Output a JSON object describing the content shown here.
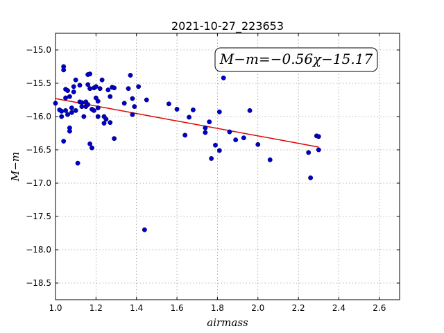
{
  "chart_data": {
    "type": "scatter",
    "title": "2021-10-27_223653",
    "xlabel": "airmass",
    "ylabel": "M−m",
    "annotation": "M−m=−0.56χ−15.17",
    "xlim": [
      1.0,
      2.7
    ],
    "ylim": [
      -18.75,
      -14.75
    ],
    "y_inverted": true,
    "grid": true,
    "xticks": [
      "1.0",
      "1.2",
      "1.4",
      "1.6",
      "1.8",
      "2.0",
      "2.2",
      "2.4",
      "2.6"
    ],
    "yticks": [
      "−15.0",
      "−15.5",
      "−16.0",
      "−16.5",
      "−17.0",
      "−17.5",
      "−18.0",
      "−18.5"
    ],
    "fit": {
      "slope": -0.56,
      "intercept": -15.17,
      "x_range": [
        1.0,
        2.3
      ],
      "color": "#e00000"
    },
    "series": [
      {
        "marker_color": "#0000cc",
        "x": [
          1.0,
          1.02,
          1.03,
          1.03,
          1.04,
          1.04,
          1.04,
          1.05,
          1.05,
          1.05,
          1.06,
          1.06,
          1.07,
          1.07,
          1.07,
          1.08,
          1.08,
          1.09,
          1.09,
          1.1,
          1.1,
          1.11,
          1.12,
          1.12,
          1.13,
          1.13,
          1.14,
          1.15,
          1.15,
          1.16,
          1.16,
          1.16,
          1.17,
          1.17,
          1.17,
          1.18,
          1.18,
          1.19,
          1.19,
          1.2,
          1.2,
          1.21,
          1.21,
          1.21,
          1.22,
          1.23,
          1.24,
          1.24,
          1.25,
          1.26,
          1.27,
          1.27,
          1.28,
          1.29,
          1.29,
          1.34,
          1.36,
          1.37,
          1.38,
          1.38,
          1.39,
          1.41,
          1.44,
          1.45,
          1.56,
          1.6,
          1.64,
          1.66,
          1.68,
          1.74,
          1.74,
          1.76,
          1.77,
          1.79,
          1.81,
          1.81,
          1.83,
          1.86,
          1.89,
          1.93,
          1.96,
          2.0,
          2.06,
          2.25,
          2.26,
          2.29,
          2.3,
          2.3
        ],
        "y": [
          -15.8,
          -15.9,
          -16.0,
          -15.92,
          -16.37,
          -15.25,
          -15.3,
          -15.59,
          -15.72,
          -15.91,
          -15.61,
          -15.97,
          -16.17,
          -16.22,
          -15.7,
          -15.87,
          -15.94,
          -15.55,
          -15.63,
          -15.45,
          -15.91,
          -16.7,
          -15.53,
          -15.78,
          -15.85,
          -15.79,
          -16.0,
          -15.85,
          -15.78,
          -15.37,
          -15.52,
          -15.82,
          -15.58,
          -16.41,
          -15.36,
          -15.89,
          -16.47,
          -15.57,
          -15.91,
          -15.55,
          -15.72,
          -15.77,
          -15.87,
          -16.0,
          -15.58,
          -15.45,
          -16.0,
          -16.1,
          -16.04,
          -15.6,
          -15.7,
          -16.09,
          -15.56,
          -15.57,
          -16.33,
          -15.8,
          -15.58,
          -15.38,
          -15.73,
          -15.97,
          -15.85,
          -15.55,
          -17.7,
          -15.75,
          -15.81,
          -15.89,
          -16.28,
          -16.01,
          -15.9,
          -16.17,
          -16.24,
          -16.08,
          -16.63,
          -16.43,
          -16.51,
          -15.93,
          -15.42,
          -16.23,
          -16.35,
          -16.32,
          -15.91,
          -16.42,
          -16.65,
          -16.54,
          -16.92,
          -16.29,
          -16.3,
          -16.5
        ]
      }
    ]
  }
}
